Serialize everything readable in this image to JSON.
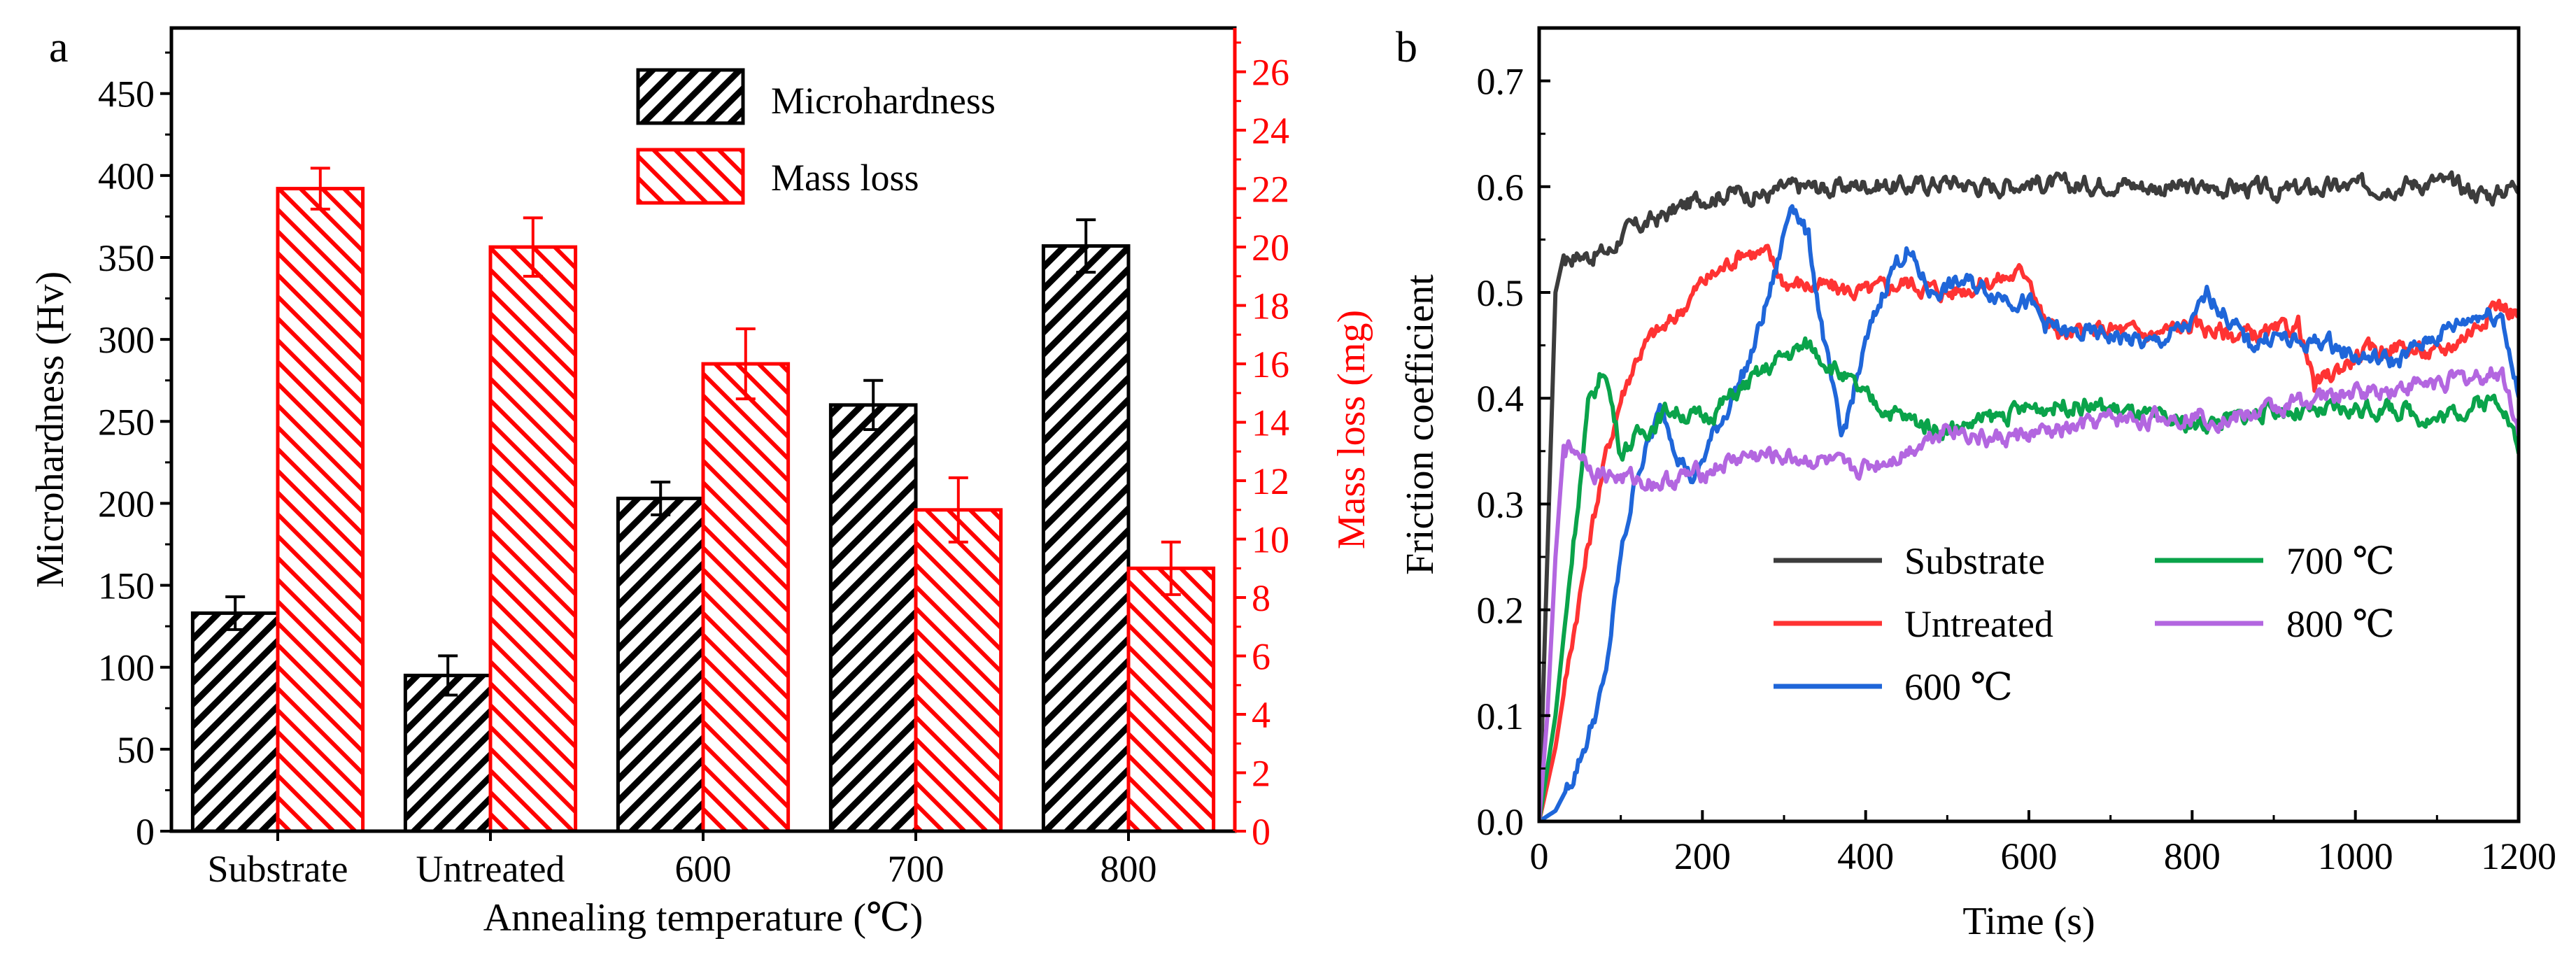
{
  "chart_data": [
    {
      "panel_label": "a",
      "type": "bar",
      "categories": [
        "Substrate",
        "Untreated",
        "600",
        "700",
        "800"
      ],
      "xlabel": "Annealing temperature (℃)",
      "ylabel": "Microhardness (Hv)",
      "ylabel_right": "Mass loss (mg)",
      "ylim": [
        0,
        490
      ],
      "yticks": [
        0,
        50,
        100,
        150,
        200,
        250,
        300,
        350,
        400,
        450
      ],
      "ylim_right": [
        0,
        27.5
      ],
      "yticks_right": [
        0,
        2,
        4,
        6,
        8,
        10,
        12,
        14,
        16,
        18,
        20,
        22,
        24,
        26
      ],
      "series": [
        {
          "name": "Microhardness",
          "axis": "left",
          "color": "#000000",
          "values": [
            133,
            95,
            203,
            260,
            357
          ],
          "errors": [
            10,
            12,
            10,
            15,
            16
          ]
        },
        {
          "name": "Mass loss",
          "axis": "right",
          "color": "#ff0000",
          "values": [
            22,
            20,
            16,
            11,
            9
          ],
          "errors": [
            0.7,
            1.0,
            1.2,
            1.1,
            0.9
          ]
        }
      ],
      "legend_position": "top-center"
    },
    {
      "panel_label": "b",
      "type": "line",
      "xlabel": "Time (s)",
      "ylabel": "Friction coefficient",
      "xlim": [
        0,
        1200
      ],
      "xticks": [
        0,
        200,
        400,
        600,
        800,
        1000,
        1200
      ],
      "ylim": [
        0,
        0.75
      ],
      "yticks": [
        0.0,
        0.1,
        0.2,
        0.3,
        0.4,
        0.5,
        0.6,
        0.7
      ],
      "series": [
        {
          "name": "Substrate",
          "color": "#3c3c3c",
          "x": [
            0,
            10,
            20,
            30,
            60,
            90,
            100,
            130,
            160,
            200,
            240,
            280,
            300,
            330,
            360,
            400,
            450,
            500,
            550,
            600,
            650,
            700,
            750,
            800,
            850,
            900,
            950,
            1000,
            1050,
            1100,
            1150,
            1170,
            1200
          ],
          "y": [
            0,
            0.25,
            0.5,
            0.535,
            0.535,
            0.54,
            0.555,
            0.565,
            0.575,
            0.59,
            0.595,
            0.592,
            0.598,
            0.6,
            0.598,
            0.603,
            0.6,
            0.605,
            0.6,
            0.605,
            0.6,
            0.605,
            0.6,
            0.598,
            0.6,
            0.595,
            0.598,
            0.6,
            0.602,
            0.605,
            0.595,
            0.592,
            0.605
          ]
        },
        {
          "name": "Untreated",
          "color": "#ff3333",
          "x": [
            0,
            20,
            40,
            60,
            80,
            100,
            120,
            140,
            160,
            180,
            200,
            220,
            250,
            280,
            300,
            350,
            400,
            450,
            500,
            550,
            600,
            620,
            650,
            700,
            750,
            800,
            850,
            900,
            930,
            950,
            1000,
            1050,
            1100,
            1150,
            1170,
            1200
          ],
          "y": [
            0,
            0.07,
            0.17,
            0.26,
            0.34,
            0.4,
            0.44,
            0.46,
            0.47,
            0.49,
            0.51,
            0.52,
            0.54,
            0.535,
            0.51,
            0.505,
            0.5,
            0.51,
            0.5,
            0.51,
            0.52,
            0.47,
            0.46,
            0.465,
            0.46,
            0.47,
            0.46,
            0.46,
            0.47,
            0.41,
            0.44,
            0.45,
            0.44,
            0.47,
            0.49,
            0.48
          ]
        },
        {
          "name": "600 ℃",
          "color": "#1f66d9",
          "x": [
            0,
            20,
            40,
            60,
            80,
            100,
            120,
            150,
            170,
            190,
            210,
            230,
            260,
            290,
            310,
            330,
            350,
            370,
            400,
            430,
            450,
            480,
            520,
            560,
            600,
            620,
            650,
            700,
            750,
            800,
            820,
            850,
            870,
            900,
            930,
            960,
            1000,
            1050,
            1100,
            1150,
            1180,
            1200
          ],
          "y": [
            0,
            0.01,
            0.04,
            0.08,
            0.13,
            0.25,
            0.33,
            0.39,
            0.35,
            0.32,
            0.36,
            0.39,
            0.44,
            0.52,
            0.59,
            0.55,
            0.45,
            0.36,
            0.45,
            0.52,
            0.54,
            0.5,
            0.51,
            0.5,
            0.49,
            0.47,
            0.46,
            0.46,
            0.45,
            0.47,
            0.5,
            0.47,
            0.45,
            0.46,
            0.45,
            0.455,
            0.44,
            0.435,
            0.46,
            0.48,
            0.48,
            0.4
          ]
        },
        {
          "name": "700 ℃",
          "color": "#0aa34a",
          "x": [
            0,
            20,
            40,
            60,
            80,
            100,
            130,
            160,
            200,
            250,
            300,
            330,
            360,
            400,
            450,
            500,
            550,
            600,
            650,
            700,
            750,
            800,
            850,
            900,
            950,
            1000,
            1050,
            1100,
            1150,
            1180,
            1200
          ],
          "y": [
            0,
            0.1,
            0.25,
            0.39,
            0.43,
            0.35,
            0.37,
            0.39,
            0.38,
            0.41,
            0.44,
            0.45,
            0.43,
            0.4,
            0.38,
            0.37,
            0.38,
            0.39,
            0.395,
            0.39,
            0.38,
            0.375,
            0.38,
            0.39,
            0.385,
            0.39,
            0.39,
            0.38,
            0.395,
            0.4,
            0.35
          ]
        },
        {
          "name": "800 ℃",
          "color": "#b366e0",
          "x": [
            0,
            10,
            20,
            30,
            50,
            70,
            100,
            150,
            200,
            250,
            300,
            350,
            380,
            420,
            450,
            500,
            550,
            600,
            650,
            700,
            750,
            800,
            850,
            900,
            950,
            1000,
            1050,
            1100,
            1150,
            1180,
            1200
          ],
          "y": [
            0,
            0.1,
            0.25,
            0.355,
            0.35,
            0.33,
            0.325,
            0.32,
            0.33,
            0.345,
            0.345,
            0.34,
            0.33,
            0.34,
            0.35,
            0.375,
            0.36,
            0.365,
            0.37,
            0.38,
            0.38,
            0.385,
            0.38,
            0.39,
            0.4,
            0.405,
            0.41,
            0.415,
            0.42,
            0.425,
            0.37
          ]
        }
      ],
      "legend_position": "bottom-center"
    }
  ]
}
